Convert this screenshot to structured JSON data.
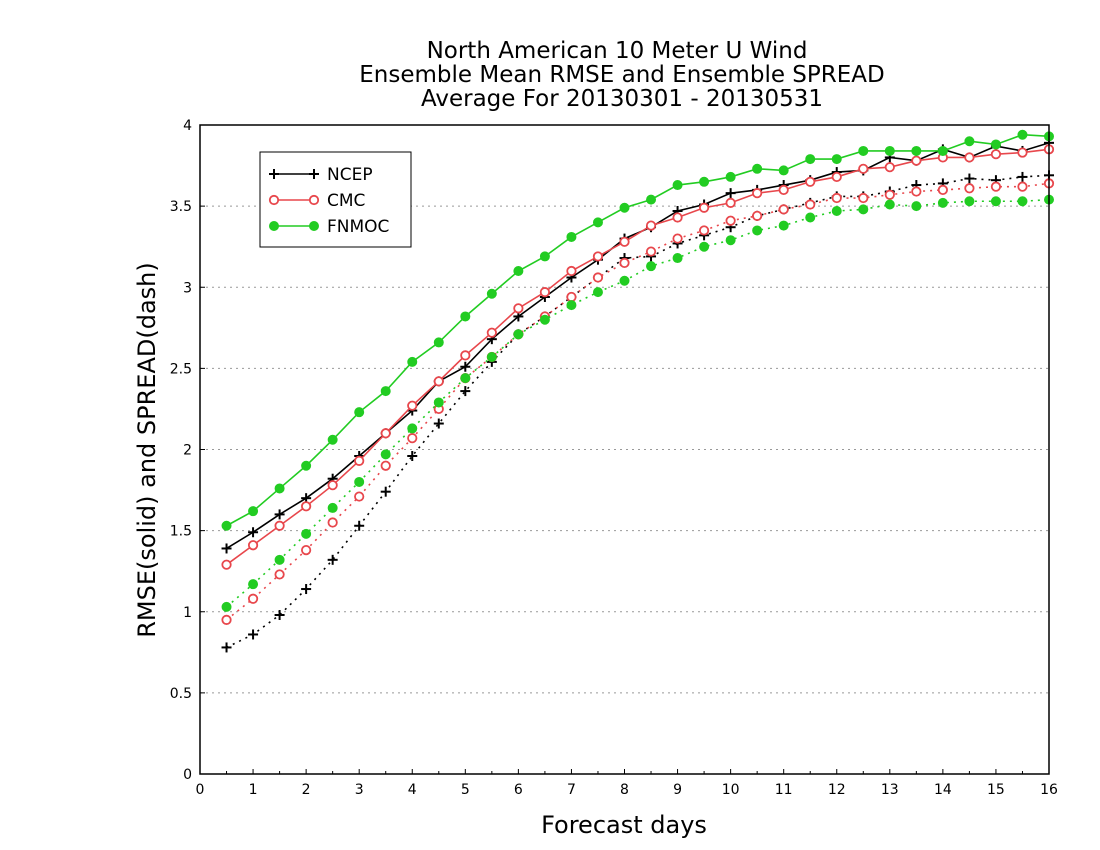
{
  "chart_data": {
    "type": "line",
    "title_lines": [
      "North American 10 Meter U Wind",
      "Ensemble Mean RMSE and Ensemble SPREAD",
      "Average For 20130301 - 20130531"
    ],
    "xlabel": "Forecast days",
    "ylabel": "RMSE(solid) and SPREAD(dash)",
    "xlim": [
      0,
      16
    ],
    "ylim": [
      0,
      4
    ],
    "x_ticks": [
      "0",
      "1",
      "2",
      "3",
      "4",
      "5",
      "6",
      "7",
      "8",
      "9",
      "10",
      "11",
      "12",
      "13",
      "14",
      "15",
      "16"
    ],
    "y_ticks": [
      "0",
      "0.5",
      "1",
      "1.5",
      "2",
      "2.5",
      "3",
      "3.5",
      "4"
    ],
    "y_tick_values": [
      0,
      0.5,
      1,
      1.5,
      2,
      2.5,
      3,
      3.5,
      4
    ],
    "grid": "horizontal dotted",
    "legend_position": "top-left",
    "x": [
      0.5,
      1,
      1.5,
      2,
      2.5,
      3,
      3.5,
      4,
      4.5,
      5,
      5.5,
      6,
      6.5,
      7,
      7.5,
      8,
      8.5,
      9,
      9.5,
      10,
      10.5,
      11,
      11.5,
      12,
      12.5,
      13,
      13.5,
      14,
      14.5,
      15,
      15.5,
      16
    ],
    "series": [
      {
        "name": "NCEP",
        "color": "#000000",
        "marker": "plus",
        "rmse": [
          1.39,
          1.49,
          1.6,
          1.7,
          1.82,
          1.96,
          2.1,
          2.24,
          2.42,
          2.51,
          2.68,
          2.82,
          2.94,
          3.06,
          3.17,
          3.3,
          3.37,
          3.47,
          3.51,
          3.58,
          3.6,
          3.63,
          3.66,
          3.71,
          3.72,
          3.8,
          3.78,
          3.85,
          3.8,
          3.87,
          3.84,
          3.89
        ],
        "spread": [
          0.78,
          0.86,
          0.98,
          1.14,
          1.32,
          1.53,
          1.74,
          1.96,
          2.16,
          2.36,
          2.54,
          2.71,
          2.82,
          2.94,
          3.06,
          3.18,
          3.19,
          3.27,
          3.32,
          3.37,
          3.44,
          3.48,
          3.52,
          3.56,
          3.56,
          3.59,
          3.63,
          3.64,
          3.67,
          3.66,
          3.68,
          3.69
        ]
      },
      {
        "name": "CMC",
        "color": "#e8474c",
        "marker": "circle",
        "rmse": [
          1.29,
          1.41,
          1.53,
          1.65,
          1.78,
          1.93,
          2.1,
          2.27,
          2.42,
          2.58,
          2.72,
          2.87,
          2.97,
          3.1,
          3.19,
          3.28,
          3.38,
          3.43,
          3.49,
          3.52,
          3.58,
          3.6,
          3.65,
          3.68,
          3.73,
          3.74,
          3.78,
          3.8,
          3.8,
          3.82,
          3.83,
          3.85
        ],
        "spread": [
          0.95,
          1.08,
          1.23,
          1.38,
          1.55,
          1.71,
          1.9,
          2.07,
          2.25,
          2.44,
          2.57,
          2.71,
          2.82,
          2.94,
          3.06,
          3.15,
          3.22,
          3.3,
          3.35,
          3.41,
          3.44,
          3.48,
          3.51,
          3.55,
          3.55,
          3.57,
          3.59,
          3.6,
          3.61,
          3.62,
          3.62,
          3.64
        ]
      },
      {
        "name": "FNMOC",
        "color": "#22cc22",
        "marker": "dot",
        "rmse": [
          1.53,
          1.62,
          1.76,
          1.9,
          2.06,
          2.23,
          2.36,
          2.54,
          2.66,
          2.82,
          2.96,
          3.1,
          3.19,
          3.31,
          3.4,
          3.49,
          3.54,
          3.63,
          3.65,
          3.68,
          3.73,
          3.72,
          3.79,
          3.79,
          3.84,
          3.84,
          3.84,
          3.84,
          3.9,
          3.88,
          3.94,
          3.93
        ],
        "spread": [
          1.03,
          1.17,
          1.32,
          1.48,
          1.64,
          1.8,
          1.97,
          2.13,
          2.29,
          2.44,
          2.57,
          2.71,
          2.8,
          2.89,
          2.97,
          3.04,
          3.13,
          3.18,
          3.25,
          3.29,
          3.35,
          3.38,
          3.43,
          3.47,
          3.48,
          3.51,
          3.5,
          3.52,
          3.53,
          3.53,
          3.53,
          3.54
        ]
      }
    ]
  }
}
